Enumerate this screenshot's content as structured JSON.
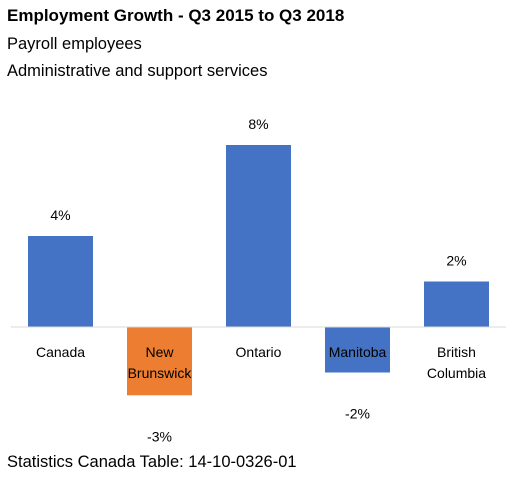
{
  "chart_data": {
    "type": "bar",
    "title": "Employment Growth - Q3 2015 to Q3 2018",
    "subtitle": [
      "Payroll employees",
      "Administrative and support services"
    ],
    "categories": [
      "Canada",
      "New Brunswick",
      "Ontario",
      "Manitoba",
      "British Columbia"
    ],
    "category_lines": [
      [
        "Canada"
      ],
      [
        "New",
        "Brunswick"
      ],
      [
        "Ontario"
      ],
      [
        "Manitoba"
      ],
      [
        "British",
        "Columbia"
      ]
    ],
    "values": [
      4,
      -3,
      8,
      -2,
      2
    ],
    "data_labels": [
      "4%",
      "-3%",
      "8%",
      "-2%",
      "2%"
    ],
    "bar_colors": [
      "#4472C4",
      "#ED7D31",
      "#4472C4",
      "#4472C4",
      "#4472C4"
    ],
    "ylim": [
      -3,
      8
    ],
    "grid": false,
    "legend": "none",
    "source": "Statistics Canada Table: 14-10-0326-01"
  }
}
